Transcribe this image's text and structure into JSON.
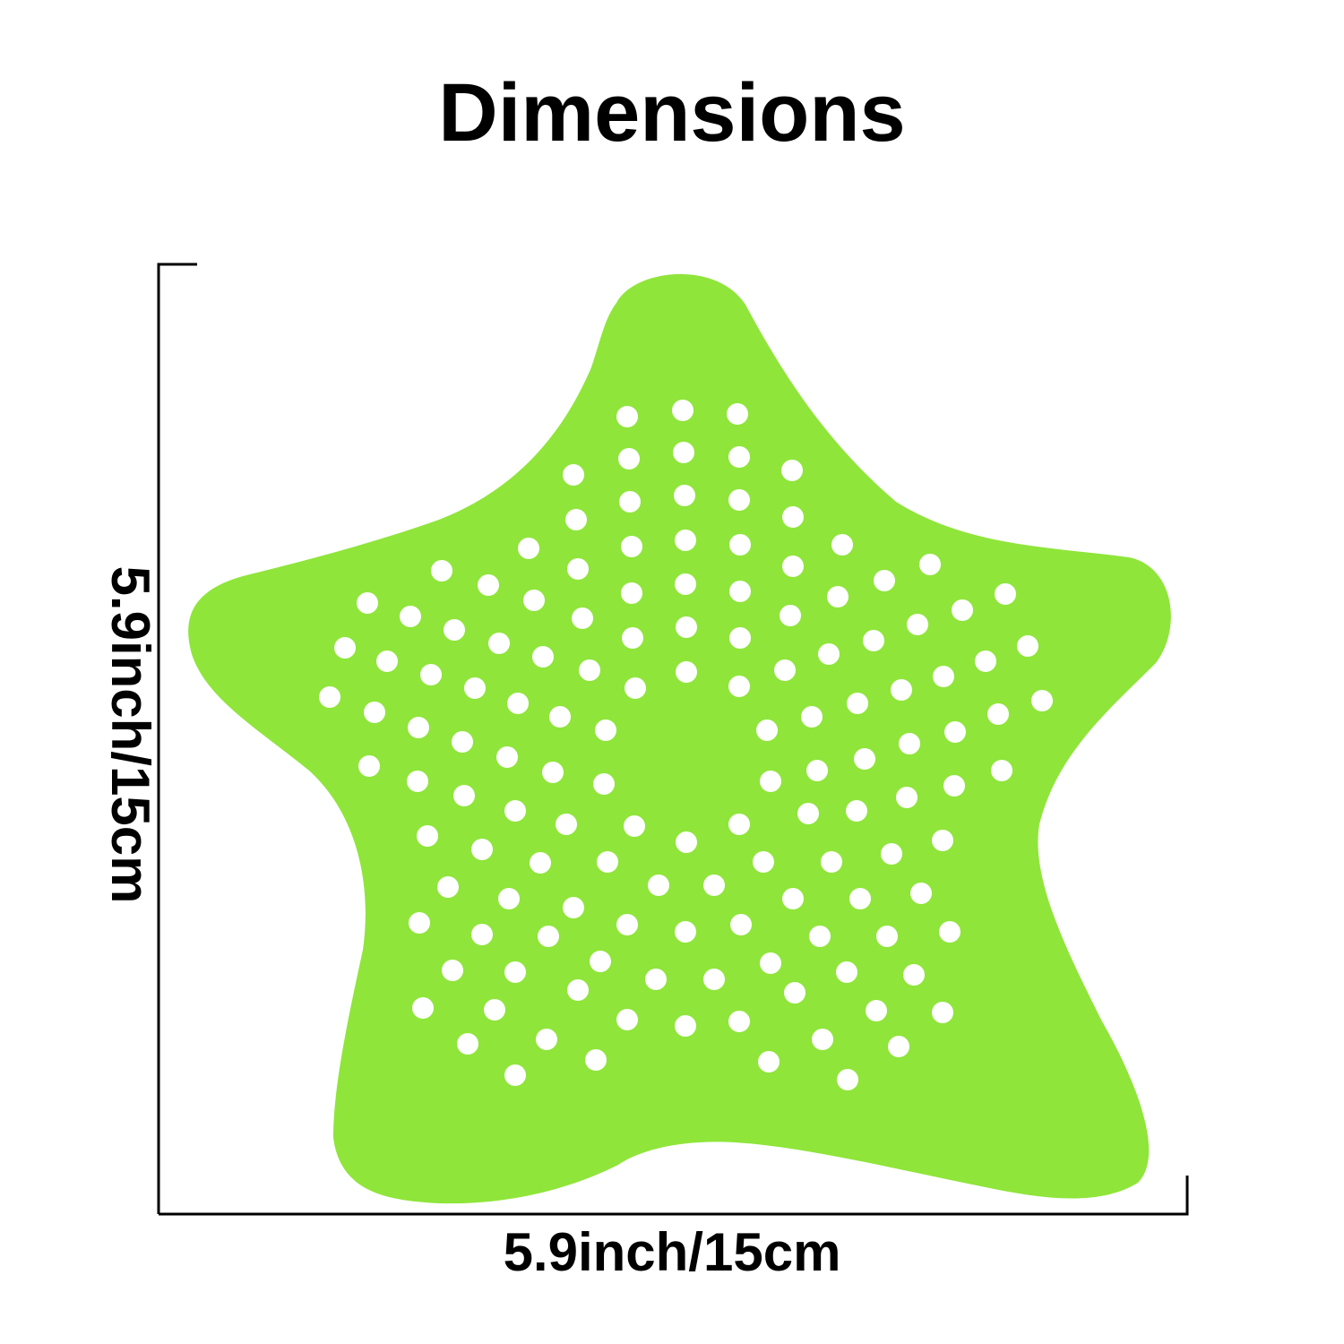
{
  "title": "Dimensions",
  "height_label": "5.9inch/15cm",
  "width_label": "5.9inch/15cm",
  "colors": {
    "starfish": "#8fe53a",
    "holes": "#ffffff",
    "bracket": "#000000"
  }
}
